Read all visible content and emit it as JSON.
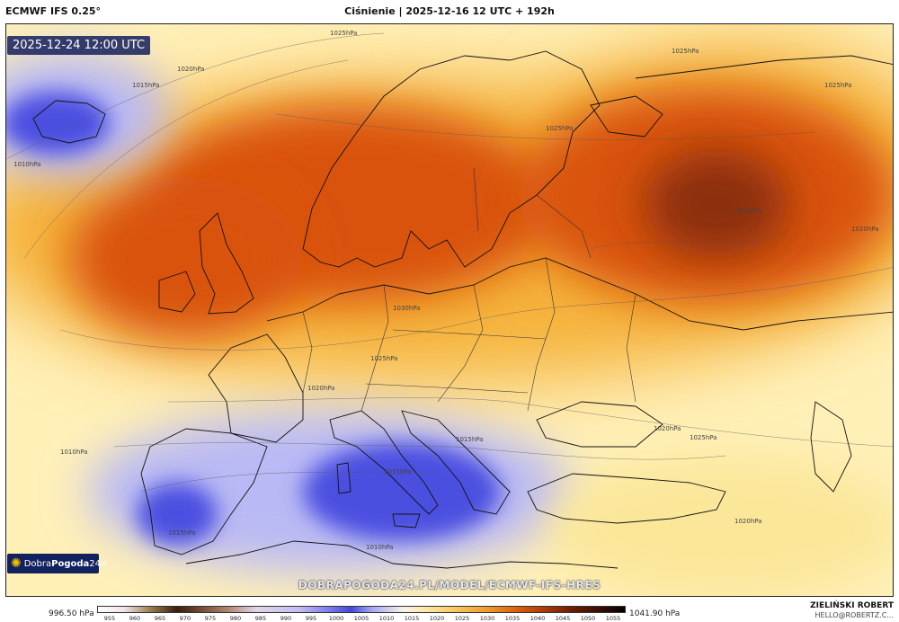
{
  "header": {
    "model": "ECMWF IFS 0.25°",
    "run": "Ciśnienie | 2025-12-16 12 UTC + 192h"
  },
  "map": {
    "valid_time": "2025-12-24 12:00 UTC",
    "isobar_labels": [
      "1025hPa",
      "1025hPa",
      "1020hPa",
      "1015hPa",
      "1010hPa",
      "1040hPa",
      "1020hPa",
      "1030hPa",
      "1025hPa",
      "1020hPa",
      "1020hPa",
      "1025hPa",
      "1015hPa",
      "1015hPa",
      "1015hPa",
      "1020hPa",
      "1010hPa",
      "1010hPa",
      "1025hPa",
      "1025hPa"
    ],
    "colors": {
      "high": "#d9520a",
      "high_core": "#8a2e07",
      "mid": "#f5b23a",
      "neutral": "#fff0b8",
      "low": "#4c50e0",
      "low_light": "#b9b9f5"
    }
  },
  "watermark": "DOBRAPOGODA24.PL/MODEL/ECMWF-IFS-HRES",
  "logo": {
    "icon": "sun-icon",
    "text_a": "Dobra",
    "text_b": "Pogoda",
    "text_c": "24",
    "suffix": "pl"
  },
  "legend": {
    "min": "996.50 hPa",
    "max": "1041.90 hPa",
    "ticks": [
      "955",
      "960",
      "965",
      "970",
      "975",
      "980",
      "985",
      "990",
      "995",
      "1000",
      "1005",
      "1010",
      "1015",
      "1020",
      "1025",
      "1030",
      "1035",
      "1040",
      "1045",
      "1050",
      "1055"
    ]
  },
  "author": {
    "name": "ZIELIŃSKI ROBERT",
    "email": "HELLO@ROBERTZ.C..."
  }
}
